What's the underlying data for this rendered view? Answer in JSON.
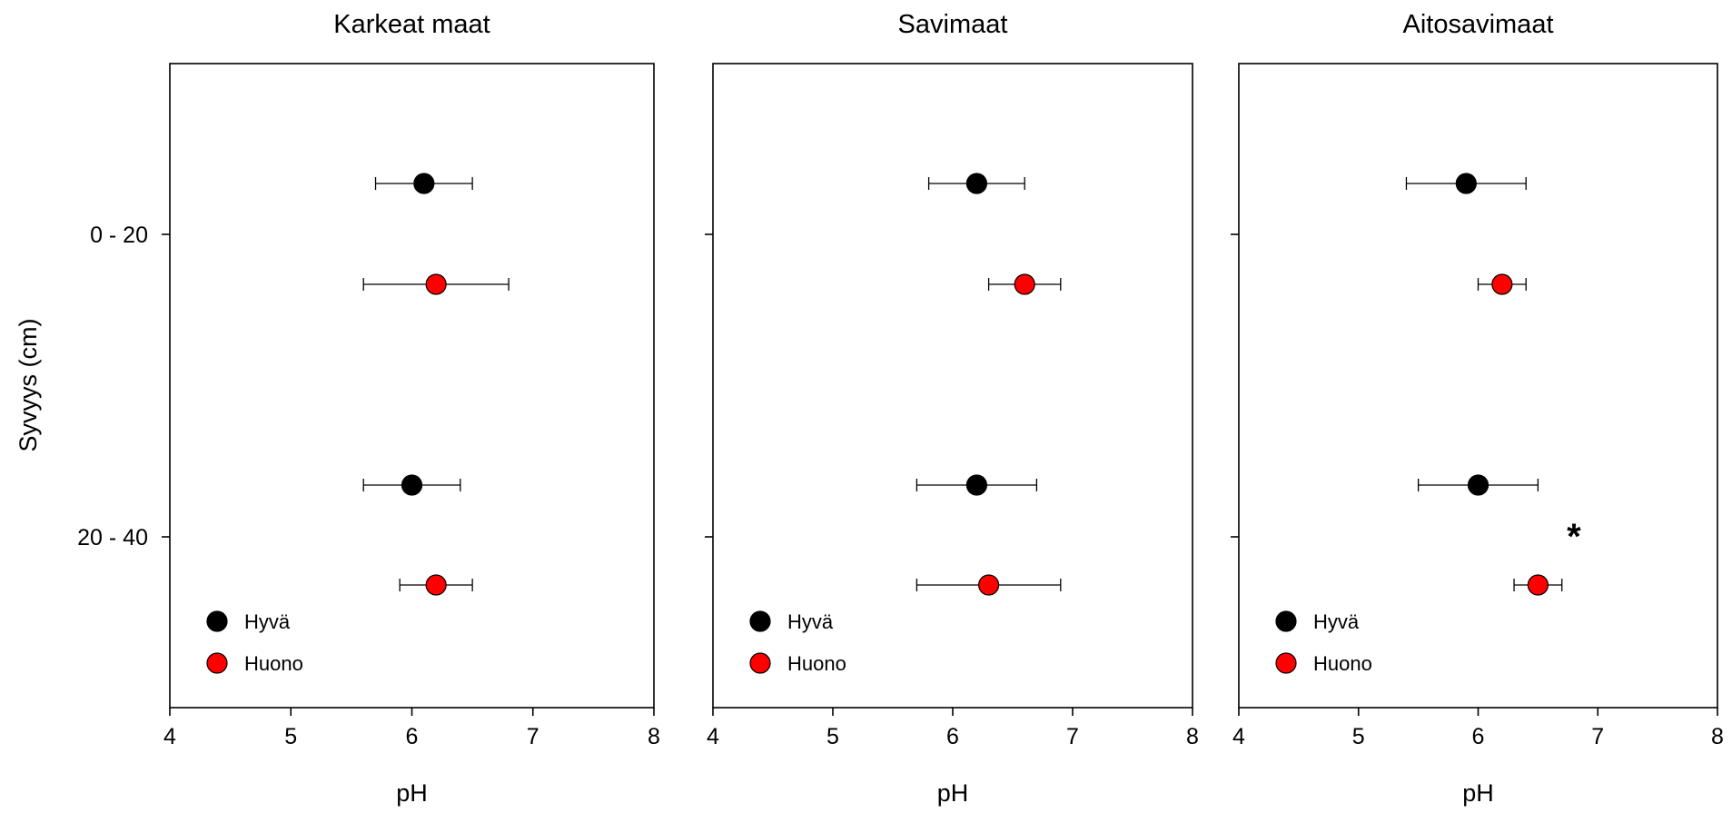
{
  "chart_data": {
    "type": "scatter",
    "ylabel": "Syvyys (cm)",
    "xlabel": "pH",
    "xlim": [
      4,
      8
    ],
    "xticks": [
      4,
      5,
      6,
      7,
      8
    ],
    "yticks": [
      "0 - 20",
      "20 - 40"
    ],
    "grid": false,
    "legend_position": "bottom-left",
    "legend": [
      {
        "name": "Hyvä",
        "color": "#000000"
      },
      {
        "name": "Huono",
        "color": "#ff0000"
      }
    ],
    "panels": [
      {
        "title": "Karkeat maat",
        "points": [
          {
            "depth": "0 - 20",
            "series": "Hyvä",
            "x": 6.1,
            "err_low": 5.7,
            "err_high": 6.5
          },
          {
            "depth": "0 - 20",
            "series": "Huono",
            "x": 6.2,
            "err_low": 5.6,
            "err_high": 6.8
          },
          {
            "depth": "20 - 40",
            "series": "Hyvä",
            "x": 6.0,
            "err_low": 5.6,
            "err_high": 6.4
          },
          {
            "depth": "20 - 40",
            "series": "Huono",
            "x": 6.2,
            "err_low": 5.9,
            "err_high": 6.5
          }
        ],
        "annotations": []
      },
      {
        "title": "Savimaat",
        "points": [
          {
            "depth": "0 - 20",
            "series": "Hyvä",
            "x": 6.2,
            "err_low": 5.8,
            "err_high": 6.6
          },
          {
            "depth": "0 - 20",
            "series": "Huono",
            "x": 6.6,
            "err_low": 6.3,
            "err_high": 6.9
          },
          {
            "depth": "20 - 40",
            "series": "Hyvä",
            "x": 6.2,
            "err_low": 5.7,
            "err_high": 6.7
          },
          {
            "depth": "20 - 40",
            "series": "Huono",
            "x": 6.3,
            "err_low": 5.7,
            "err_high": 6.9
          }
        ],
        "annotations": []
      },
      {
        "title": "Aitosavimaat",
        "points": [
          {
            "depth": "0 - 20",
            "series": "Hyvä",
            "x": 5.9,
            "err_low": 5.4,
            "err_high": 6.4
          },
          {
            "depth": "0 - 20",
            "series": "Huono",
            "x": 6.2,
            "err_low": 6.0,
            "err_high": 6.4
          },
          {
            "depth": "20 - 40",
            "series": "Hyvä",
            "x": 6.0,
            "err_low": 5.5,
            "err_high": 6.5
          },
          {
            "depth": "20 - 40",
            "series": "Huono",
            "x": 6.5,
            "err_low": 6.3,
            "err_high": 6.7
          }
        ],
        "annotations": [
          {
            "text": "*",
            "depth": "20 - 40",
            "x": 6.8
          }
        ]
      }
    ]
  }
}
